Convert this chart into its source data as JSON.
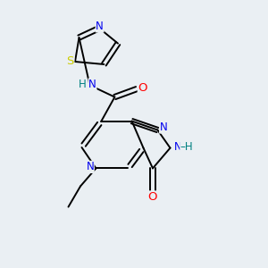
{
  "background_color": "#eaeff3",
  "bond_color": "#000000",
  "atom_colors": {
    "N": "#0000ee",
    "O": "#ff0000",
    "S": "#cccc00",
    "C": "#000000",
    "H": "#008080"
  },
  "figsize": [
    3.0,
    3.0
  ],
  "dpi": 100
}
